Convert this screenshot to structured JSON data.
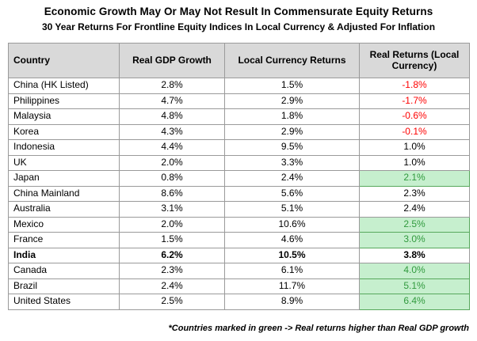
{
  "title": "Economic Growth May Or May Not Result In Commensurate Equity Returns",
  "subtitle": "30 Year Returns For Frontline Equity Indices In Local Currency & Adjusted For Inflation",
  "table": {
    "columns": [
      "Country",
      "Real GDP Growth",
      "Local Currency Returns",
      "Real Returns (Local Currency)"
    ],
    "rows": [
      {
        "country": "China (HK Listed)",
        "real_gdp_growth": "2.8%",
        "local_currency_returns": "1.5%",
        "real_returns": "-1.8%",
        "real_returns_style": "negative",
        "bold": false
      },
      {
        "country": "Philippines",
        "real_gdp_growth": "4.7%",
        "local_currency_returns": "2.9%",
        "real_returns": "-1.7%",
        "real_returns_style": "negative",
        "bold": false
      },
      {
        "country": "Malaysia",
        "real_gdp_growth": "4.8%",
        "local_currency_returns": "1.8%",
        "real_returns": "-0.6%",
        "real_returns_style": "negative",
        "bold": false
      },
      {
        "country": "Korea",
        "real_gdp_growth": "4.3%",
        "local_currency_returns": "2.9%",
        "real_returns": "-0.1%",
        "real_returns_style": "negative",
        "bold": false
      },
      {
        "country": "Indonesia",
        "real_gdp_growth": "4.4%",
        "local_currency_returns": "9.5%",
        "real_returns": "1.0%",
        "real_returns_style": "normal",
        "bold": false
      },
      {
        "country": "UK",
        "real_gdp_growth": "2.0%",
        "local_currency_returns": "3.3%",
        "real_returns": "1.0%",
        "real_returns_style": "normal",
        "bold": false
      },
      {
        "country": "Japan",
        "real_gdp_growth": "0.8%",
        "local_currency_returns": "2.4%",
        "real_returns": "2.1%",
        "real_returns_style": "positive",
        "bold": false
      },
      {
        "country": "China Mainland",
        "real_gdp_growth": "8.6%",
        "local_currency_returns": "5.6%",
        "real_returns": "2.3%",
        "real_returns_style": "normal",
        "bold": false
      },
      {
        "country": "Australia",
        "real_gdp_growth": "3.1%",
        "local_currency_returns": "5.1%",
        "real_returns": "2.4%",
        "real_returns_style": "normal",
        "bold": false
      },
      {
        "country": "Mexico",
        "real_gdp_growth": "2.0%",
        "local_currency_returns": "10.6%",
        "real_returns": "2.5%",
        "real_returns_style": "positive",
        "bold": false
      },
      {
        "country": "France",
        "real_gdp_growth": "1.5%",
        "local_currency_returns": "4.6%",
        "real_returns": "3.0%",
        "real_returns_style": "positive",
        "bold": false
      },
      {
        "country": "India",
        "real_gdp_growth": "6.2%",
        "local_currency_returns": "10.5%",
        "real_returns": "3.8%",
        "real_returns_style": "normal",
        "bold": true
      },
      {
        "country": "Canada",
        "real_gdp_growth": "2.3%",
        "local_currency_returns": "6.1%",
        "real_returns": "4.0%",
        "real_returns_style": "positive",
        "bold": false
      },
      {
        "country": "Brazil",
        "real_gdp_growth": "2.4%",
        "local_currency_returns": "11.7%",
        "real_returns": "5.1%",
        "real_returns_style": "positive",
        "bold": false
      },
      {
        "country": "United States",
        "real_gdp_growth": "2.5%",
        "local_currency_returns": "8.9%",
        "real_returns": "6.4%",
        "real_returns_style": "positive",
        "bold": false
      }
    ]
  },
  "footnote": "*Countries marked in green -> Real returns higher than Real GDP growth",
  "colors": {
    "header_bg": "#d9d9d9",
    "grid_border": "#9a9a9a",
    "negative_text": "#fe0000",
    "positive_bg": "#c6efce",
    "positive_text": "#319a3e",
    "positive_border": "#57a85c"
  }
}
